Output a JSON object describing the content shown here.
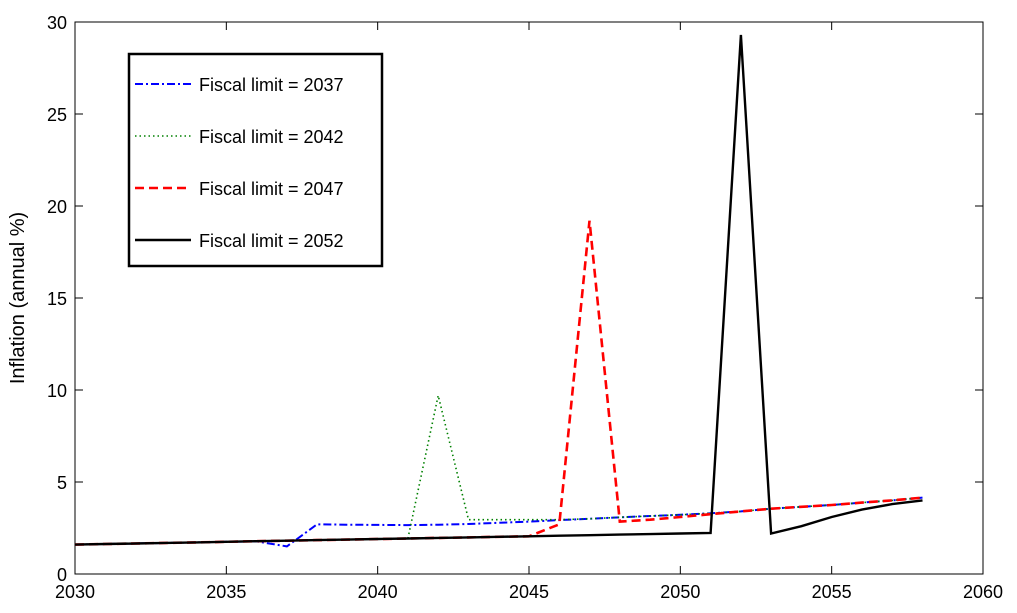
{
  "chart_data": {
    "type": "line",
    "title": "",
    "xlabel": "",
    "ylabel": "Inflation (annual %)",
    "xlim": [
      2030,
      2060
    ],
    "ylim": [
      0,
      30
    ],
    "xticks": [
      2030,
      2035,
      2040,
      2045,
      2050,
      2055,
      2060
    ],
    "yticks": [
      0,
      5,
      10,
      15,
      20,
      25,
      30
    ],
    "grid": false,
    "legend_position": "top-left",
    "series": [
      {
        "name": "Fiscal limit = 2037",
        "color": "#0000ff",
        "style": "dashdot",
        "x": [
          2030,
          2031,
          2032,
          2033,
          2034,
          2035,
          2036,
          2037,
          2038,
          2039,
          2040,
          2041,
          2042,
          2043,
          2044,
          2045,
          2046,
          2047,
          2048,
          2049,
          2050,
          2051,
          2052,
          2053,
          2054,
          2055,
          2056,
          2057,
          2058
        ],
        "y": [
          1.6,
          1.63,
          1.66,
          1.69,
          1.72,
          1.75,
          1.77,
          1.5,
          2.7,
          2.68,
          2.67,
          2.66,
          2.68,
          2.72,
          2.78,
          2.85,
          2.93,
          3.0,
          3.08,
          3.15,
          3.22,
          3.3,
          3.4,
          3.55,
          3.65,
          3.75,
          3.88,
          4.0,
          4.15
        ]
      },
      {
        "name": "Fiscal limit = 2042",
        "color": "#008000",
        "style": "dotted",
        "x": [
          2030,
          2031,
          2032,
          2033,
          2034,
          2035,
          2036,
          2037,
          2038,
          2039,
          2040,
          2041,
          2042,
          2043,
          2044,
          2045,
          2046,
          2047,
          2048,
          2049,
          2050,
          2051,
          2052,
          2053,
          2054,
          2055,
          2056,
          2057,
          2058
        ],
        "y": [
          1.6,
          1.63,
          1.66,
          1.69,
          1.72,
          1.75,
          1.78,
          1.81,
          1.84,
          1.87,
          1.9,
          1.93,
          9.7,
          2.95,
          2.95,
          2.95,
          2.95,
          3.0,
          3.08,
          3.15,
          3.22,
          3.3,
          3.4,
          3.55,
          3.65,
          3.75,
          3.88,
          4.0,
          4.15
        ]
      },
      {
        "name": "Fiscal limit = 2047",
        "color": "#ff0000",
        "style": "dashed",
        "x": [
          2030,
          2031,
          2032,
          2033,
          2034,
          2035,
          2036,
          2037,
          2038,
          2039,
          2040,
          2041,
          2042,
          2043,
          2044,
          2045,
          2046,
          2047,
          2048,
          2049,
          2050,
          2051,
          2052,
          2053,
          2054,
          2055,
          2056,
          2057,
          2058
        ],
        "y": [
          1.6,
          1.63,
          1.66,
          1.69,
          1.72,
          1.75,
          1.78,
          1.81,
          1.84,
          1.87,
          1.9,
          1.93,
          1.96,
          1.99,
          2.02,
          2.05,
          2.7,
          19.2,
          2.85,
          2.95,
          3.1,
          3.25,
          3.4,
          3.55,
          3.65,
          3.75,
          3.88,
          4.0,
          4.15
        ]
      },
      {
        "name": "Fiscal limit = 2052",
        "color": "#000000",
        "style": "solid",
        "x": [
          2030,
          2031,
          2032,
          2033,
          2034,
          2035,
          2036,
          2037,
          2038,
          2039,
          2040,
          2041,
          2042,
          2043,
          2044,
          2045,
          2046,
          2047,
          2048,
          2049,
          2050,
          2051,
          2052,
          2053,
          2054,
          2055,
          2056,
          2057,
          2058
        ],
        "y": [
          1.6,
          1.63,
          1.66,
          1.69,
          1.72,
          1.75,
          1.78,
          1.81,
          1.84,
          1.87,
          1.9,
          1.93,
          1.96,
          1.99,
          2.02,
          2.05,
          2.08,
          2.11,
          2.14,
          2.17,
          2.2,
          2.23,
          29.3,
          2.2,
          2.6,
          3.1,
          3.5,
          3.8,
          4.0
        ]
      }
    ]
  }
}
